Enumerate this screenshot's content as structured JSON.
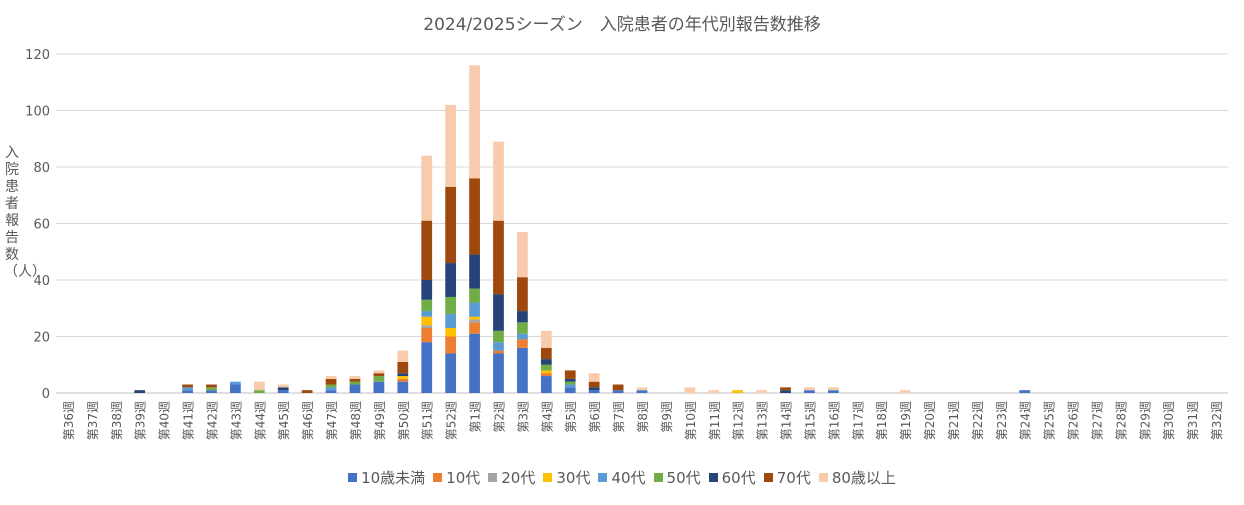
{
  "chart_data": {
    "type": "bar",
    "stacked": true,
    "title": "2024/2025シーズン　入院患者の年代別報告数推移",
    "ylabel": "入院患者報告数（人）",
    "xlabel": "",
    "ylim": [
      0,
      120
    ],
    "yticks": [
      0,
      20,
      40,
      60,
      80,
      100,
      120
    ],
    "grid": true,
    "legend_position": "bottom",
    "categories": [
      "第36週",
      "第37週",
      "第38週",
      "第39週",
      "第40週",
      "第41週",
      "第42週",
      "第43週",
      "第44週",
      "第45週",
      "第46週",
      "第47週",
      "第48週",
      "第49週",
      "第50週",
      "第51週",
      "第52週",
      "第1週",
      "第2週",
      "第3週",
      "第4週",
      "第5週",
      "第6週",
      "第7週",
      "第8週",
      "第9週",
      "第10週",
      "第11週",
      "第12週",
      "第13週",
      "第14週",
      "第15週",
      "第16週",
      "第17週",
      "第18週",
      "第19週",
      "第20週",
      "第21週",
      "第22週",
      "第23週",
      "第24週",
      "第25週",
      "第26週",
      "第27週",
      "第28週",
      "第29週",
      "第30週",
      "第31週",
      "第32週"
    ],
    "series": [
      {
        "name": "10歳未満",
        "color": "#4472C4",
        "values": [
          0,
          0,
          0,
          0,
          0,
          1,
          1,
          3,
          0,
          1,
          0,
          1,
          3,
          4,
          4,
          18,
          14,
          21,
          14,
          16,
          6,
          2,
          1,
          1,
          1,
          0,
          0,
          0,
          0,
          0,
          0,
          1,
          1,
          0,
          0,
          0,
          0,
          0,
          0,
          0,
          1,
          0,
          0,
          0,
          0,
          0,
          0,
          0,
          0
        ]
      },
      {
        "name": "10代",
        "color": "#ED7D31",
        "values": [
          0,
          0,
          0,
          0,
          0,
          0,
          0,
          0,
          0,
          0,
          0,
          0,
          0,
          0,
          1,
          5,
          6,
          4,
          1,
          3,
          1,
          0,
          0,
          0,
          0,
          0,
          0,
          0,
          0,
          0,
          0,
          0,
          0,
          0,
          0,
          0,
          0,
          0,
          0,
          0,
          0,
          0,
          0,
          0,
          0,
          0,
          0,
          0,
          0
        ]
      },
      {
        "name": "20代",
        "color": "#A5A5A5",
        "values": [
          0,
          0,
          0,
          0,
          0,
          0,
          0,
          0,
          0,
          0,
          0,
          0,
          0,
          0,
          0,
          1,
          0,
          1,
          0,
          0,
          0,
          0,
          0,
          0,
          0,
          0,
          0,
          0,
          0,
          0,
          0,
          0,
          0,
          0,
          0,
          0,
          0,
          0,
          0,
          0,
          0,
          0,
          0,
          0,
          0,
          0,
          0,
          0,
          0
        ]
      },
      {
        "name": "30代",
        "color": "#FFC000",
        "values": [
          0,
          0,
          0,
          0,
          0,
          0,
          0,
          0,
          0,
          0,
          0,
          0,
          0,
          0,
          1,
          3,
          3,
          1,
          0,
          0,
          1,
          0,
          0,
          0,
          0,
          0,
          0,
          0,
          1,
          0,
          0,
          0,
          0,
          0,
          0,
          0,
          0,
          0,
          0,
          0,
          0,
          0,
          0,
          0,
          0,
          0,
          0,
          0,
          0
        ]
      },
      {
        "name": "40代",
        "color": "#5B9BD5",
        "values": [
          0,
          0,
          0,
          0,
          0,
          1,
          0,
          1,
          0,
          0,
          0,
          1,
          0,
          0,
          0,
          2,
          5,
          5,
          3,
          2,
          0,
          1,
          0,
          0,
          0,
          0,
          0,
          0,
          0,
          0,
          0,
          0,
          0,
          0,
          0,
          0,
          0,
          0,
          0,
          0,
          0,
          0,
          0,
          0,
          0,
          0,
          0,
          0,
          0
        ]
      },
      {
        "name": "50代",
        "color": "#70AD47",
        "values": [
          0,
          0,
          0,
          0,
          0,
          0,
          1,
          0,
          1,
          0,
          0,
          1,
          1,
          2,
          0,
          4,
          6,
          5,
          4,
          4,
          2,
          1,
          0,
          0,
          0,
          0,
          0,
          0,
          0,
          0,
          0,
          0,
          0,
          0,
          0,
          0,
          0,
          0,
          0,
          0,
          0,
          0,
          0,
          0,
          0,
          0,
          0,
          0,
          0
        ]
      },
      {
        "name": "60代",
        "color": "#264478",
        "values": [
          0,
          0,
          0,
          1,
          0,
          0,
          0,
          0,
          0,
          1,
          0,
          0,
          0,
          0,
          1,
          7,
          12,
          12,
          13,
          4,
          2,
          1,
          1,
          0,
          0,
          0,
          0,
          0,
          0,
          0,
          1,
          0,
          0,
          0,
          0,
          0,
          0,
          0,
          0,
          0,
          0,
          0,
          0,
          0,
          0,
          0,
          0,
          0,
          0
        ]
      },
      {
        "name": "70代",
        "color": "#9E480E",
        "values": [
          0,
          0,
          0,
          0,
          0,
          1,
          1,
          0,
          0,
          0,
          1,
          2,
          1,
          1,
          4,
          21,
          27,
          27,
          26,
          12,
          4,
          3,
          2,
          2,
          0,
          0,
          0,
          0,
          0,
          0,
          1,
          0,
          0,
          0,
          0,
          0,
          0,
          0,
          0,
          0,
          0,
          0,
          0,
          0,
          0,
          0,
          0,
          0,
          0
        ]
      },
      {
        "name": "80歳以上",
        "color": "#F8CBAD",
        "values": [
          0,
          0,
          0,
          0,
          0,
          0,
          0,
          0,
          3,
          1,
          0,
          1,
          1,
          1,
          4,
          23,
          29,
          40,
          28,
          16,
          6,
          0,
          3,
          0,
          1,
          0,
          2,
          1,
          0,
          1,
          0,
          1,
          1,
          0,
          0,
          1,
          0,
          0,
          0,
          0,
          0,
          0,
          0,
          0,
          0,
          0,
          0,
          0,
          0
        ]
      }
    ]
  }
}
